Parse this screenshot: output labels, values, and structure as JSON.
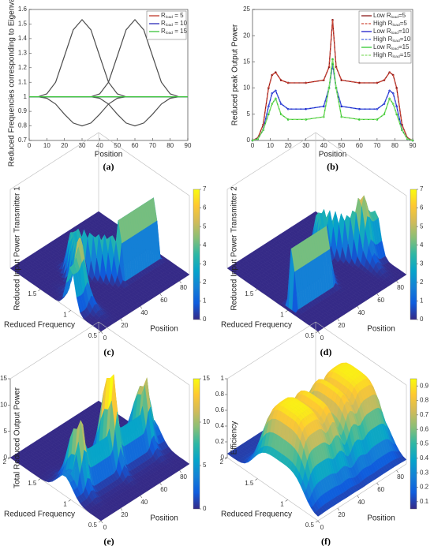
{
  "chart_data": [
    {
      "type": "line",
      "label": "(a)",
      "xlabel": "Position",
      "ylabel": "Reduced Frequencies corresponding to Eigenvalues",
      "x": [
        0,
        5,
        10,
        15,
        20,
        25,
        30,
        35,
        40,
        45,
        50,
        55,
        60,
        65,
        70,
        75,
        80,
        85,
        90
      ],
      "xlim": [
        0,
        90
      ],
      "xticks": [
        0,
        10,
        20,
        30,
        40,
        50,
        60,
        70,
        80,
        90
      ],
      "ylim": [
        0.7,
        1.6
      ],
      "yticks": [
        0.7,
        0.8,
        0.9,
        1,
        1.1,
        1.2,
        1.3,
        1.4,
        1.5,
        1.6
      ],
      "curves_color": "#4d4d4d",
      "curves": [
        [
          1,
          1,
          1.02,
          1.1,
          1.28,
          1.46,
          1.53,
          1.46,
          1.28,
          1.1,
          1.02,
          1,
          1,
          1,
          1,
          1,
          1,
          1,
          1
        ],
        [
          1,
          1,
          1,
          1,
          1,
          1,
          1,
          1,
          1.02,
          1.1,
          1.28,
          1.46,
          1.53,
          1.46,
          1.28,
          1.1,
          1.02,
          1,
          1
        ],
        [
          1,
          1,
          0.99,
          0.95,
          0.88,
          0.82,
          0.8,
          0.82,
          0.88,
          0.95,
          0.99,
          1,
          1,
          1,
          1,
          1,
          1,
          1,
          1
        ],
        [
          1,
          1,
          1,
          1,
          1,
          1,
          1,
          1,
          0.99,
          0.95,
          0.88,
          0.82,
          0.8,
          0.82,
          0.88,
          0.95,
          0.99,
          1,
          1
        ]
      ],
      "series": [
        {
          "name": [
            "R",
            "load",
            " = 5"
          ],
          "color": "#c0392b",
          "values": [
            1,
            1,
            1,
            1,
            1,
            1,
            1,
            1,
            1,
            1,
            1,
            1,
            1,
            1,
            1,
            1,
            1,
            1,
            1
          ]
        },
        {
          "name": [
            "R",
            "load",
            " = 10"
          ],
          "color": "#2a2ab8",
          "values": [
            1,
            1,
            1,
            1,
            1,
            1,
            1,
            1,
            1,
            1,
            1,
            1,
            1,
            1,
            1,
            1,
            1,
            1,
            1
          ]
        },
        {
          "name": [
            "R",
            "load",
            " = 15"
          ],
          "color": "#3cc43c",
          "values": [
            1,
            1,
            1,
            1,
            1,
            1,
            1,
            1,
            1,
            1,
            1,
            1,
            1,
            1,
            1,
            1,
            1,
            1,
            1
          ]
        }
      ],
      "legend": "upper right"
    },
    {
      "type": "line",
      "label": "(b)",
      "xlabel": "Position",
      "ylabel": "Reduced peak Output Power",
      "x": [
        0,
        3,
        6,
        9,
        11,
        13,
        16,
        20,
        30,
        40,
        43,
        45,
        47,
        50,
        60,
        70,
        74,
        77,
        79,
        81,
        84,
        87,
        90
      ],
      "xlim": [
        0,
        90
      ],
      "xticks": [
        0,
        10,
        20,
        30,
        40,
        50,
        60,
        70,
        80,
        90
      ],
      "ylim": [
        0,
        25
      ],
      "yticks": [
        0,
        5,
        10,
        15,
        20,
        25
      ],
      "series": [
        {
          "name": [
            "Low R",
            "load",
            "=5"
          ],
          "color": "#8b1a1a",
          "marker": true,
          "values": [
            0,
            0.5,
            3,
            10,
            12.5,
            13,
            11.5,
            11,
            11,
            11.5,
            14,
            23,
            14,
            11.5,
            11,
            11,
            11.5,
            13,
            12.5,
            10,
            3,
            0.5,
            0
          ]
        },
        {
          "name": [
            "High R",
            "load",
            "=5"
          ],
          "color": "#d04a3a",
          "dash": true,
          "values": [
            0,
            0.5,
            3,
            10,
            12.5,
            13,
            11.5,
            11,
            11,
            11.5,
            14,
            23,
            14,
            11.5,
            11,
            11,
            11.5,
            13,
            12.5,
            10,
            3,
            0.5,
            0
          ]
        },
        {
          "name": [
            "Low R",
            "load",
            "=10"
          ],
          "color": "#1c1cc8",
          "marker": true,
          "values": [
            0,
            0.3,
            2,
            6.5,
            9,
            9.5,
            7,
            6,
            6,
            6.5,
            10,
            14.5,
            10,
            6.5,
            6,
            6,
            7,
            9.5,
            9,
            6.5,
            2,
            0.3,
            0
          ]
        },
        {
          "name": [
            "High R",
            "load",
            "=10"
          ],
          "color": "#4a6ae0",
          "dash": true,
          "values": [
            0,
            0.3,
            2,
            6.5,
            9,
            9.5,
            7,
            6,
            6,
            6.5,
            10,
            14.5,
            10,
            6.5,
            6,
            6,
            7,
            9.5,
            9,
            6.5,
            2,
            0.3,
            0
          ]
        },
        {
          "name": [
            "Low R",
            "load",
            "=15"
          ],
          "color": "#33c833",
          "marker": true,
          "values": [
            0,
            0.3,
            2,
            5,
            7,
            8,
            5,
            4,
            4,
            4.5,
            10,
            15.5,
            10,
            4.5,
            4,
            4,
            5,
            8,
            7,
            5,
            2,
            0.3,
            0
          ]
        },
        {
          "name": [
            "High R",
            "load",
            "=15"
          ],
          "color": "#86dc6a",
          "dash": true,
          "values": [
            0,
            0.3,
            2,
            5,
            7,
            8,
            5,
            4,
            4,
            4.5,
            10,
            15.5,
            10,
            4.5,
            4,
            4,
            5,
            8,
            7,
            5,
            2,
            0.3,
            0
          ]
        }
      ],
      "legend": "upper right"
    },
    {
      "type": "surface",
      "label": "(c)",
      "zlabel": "Reduced Input Power Transmitter 1",
      "xlabel": "Position",
      "ylabel": "Reduced Frequency",
      "xlim": [
        0,
        90
      ],
      "xticks": [
        0,
        20,
        40,
        60,
        80
      ],
      "ylim": [
        0.5,
        2
      ],
      "yticks": [
        0.5,
        1,
        1.5
      ],
      "clim": [
        0,
        7
      ],
      "cticks": [
        0,
        1,
        2,
        3,
        4,
        5,
        6,
        7
      ]
    },
    {
      "type": "surface",
      "label": "(d)",
      "zlabel": "Reduced Input Power Transmitter 2",
      "xlabel": "Position",
      "ylabel": "Reduced Frequency",
      "xlim": [
        0,
        90
      ],
      "xticks": [
        0,
        20,
        40,
        60,
        80
      ],
      "ylim": [
        0.5,
        2
      ],
      "yticks": [
        0.5,
        1,
        1.5
      ],
      "clim": [
        0,
        7
      ],
      "cticks": [
        0,
        1,
        2,
        3,
        4,
        5,
        6,
        7
      ]
    },
    {
      "type": "surface",
      "label": "(e)",
      "zlabel": "Total Reduced Output Power",
      "xlabel": "Position",
      "ylabel": "Reduced Frequency",
      "xlim": [
        0,
        90
      ],
      "xticks": [
        0,
        20,
        40,
        60,
        80
      ],
      "ylim": [
        0.5,
        2
      ],
      "yticks": [
        0.5,
        1,
        1.5,
        2
      ],
      "zlim": [
        0,
        15
      ],
      "zticks": [
        0,
        5,
        10,
        15
      ],
      "clim": [
        0,
        15
      ],
      "cticks": [
        0,
        5,
        10,
        15
      ]
    },
    {
      "type": "surface",
      "label": "(f)",
      "zlabel": "Efficiency",
      "xlabel": "Position",
      "ylabel": "Reduced Frequency",
      "xlim": [
        0,
        90
      ],
      "xticks": [
        0,
        20,
        40,
        60,
        80
      ],
      "ylim": [
        0.5,
        2
      ],
      "yticks": [
        0.5,
        1,
        1.5,
        2
      ],
      "zlim": [
        0,
        1
      ],
      "zticks": [
        0,
        0.2,
        0.4,
        0.6,
        0.8,
        1
      ],
      "clim": [
        0.05,
        0.95
      ],
      "cticks": [
        0.1,
        0.2,
        0.3,
        0.4,
        0.5,
        0.6,
        0.7,
        0.8,
        0.9
      ]
    }
  ]
}
